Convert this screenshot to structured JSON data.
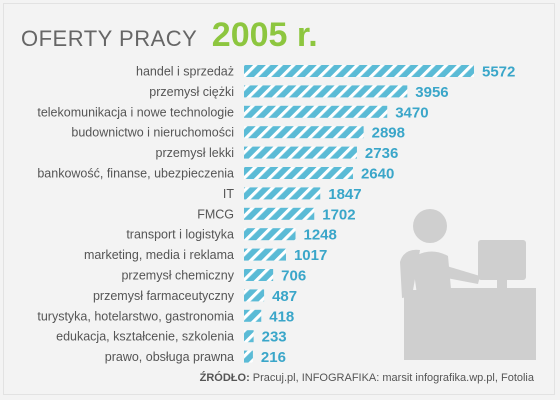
{
  "title": {
    "main": "OFERTY PRACY",
    "year": "2005 r."
  },
  "colors": {
    "bar": "#5bbbd6",
    "value": "#3aa6c9",
    "accent": "#8dc63f",
    "label": "#555555",
    "figure": "#cfcfcf"
  },
  "chart_data": {
    "type": "bar",
    "orientation": "horizontal",
    "title": "OFERTY PRACY 2005 r.",
    "categories": [
      "handel i sprzedaż",
      "przemysł ciężki",
      "telekomunikacja i nowe technologie",
      "budownictwo i nieruchomości",
      "przemysł lekki",
      "bankowość, finanse, ubezpieczenia",
      "IT",
      "FMCG",
      "transport i logistyka",
      "marketing, media i reklama",
      "przemysł chemiczny",
      "przemysł farmaceutyczny",
      "turystyka, hotelarstwo, gastronomia",
      "edukacja, kształcenie, szkolenia",
      "prawo, obsługa prawna"
    ],
    "values": [
      5572,
      3956,
      3470,
      2898,
      2736,
      2640,
      1847,
      1702,
      1248,
      1017,
      706,
      487,
      418,
      233,
      216
    ],
    "value_labels": [
      "5572",
      "3956",
      "3470",
      "2898",
      "2736",
      "2640",
      "1847",
      "1702",
      "1248",
      "1017",
      "706",
      "487",
      "418",
      "233",
      "216"
    ],
    "grid": false,
    "legend": "none"
  },
  "source": {
    "prefix": "ŹRÓDŁO:",
    "text": "Pracuj.pl, INFOGRAFIKA: marsit infografika.wp.pl, Fotolia"
  }
}
